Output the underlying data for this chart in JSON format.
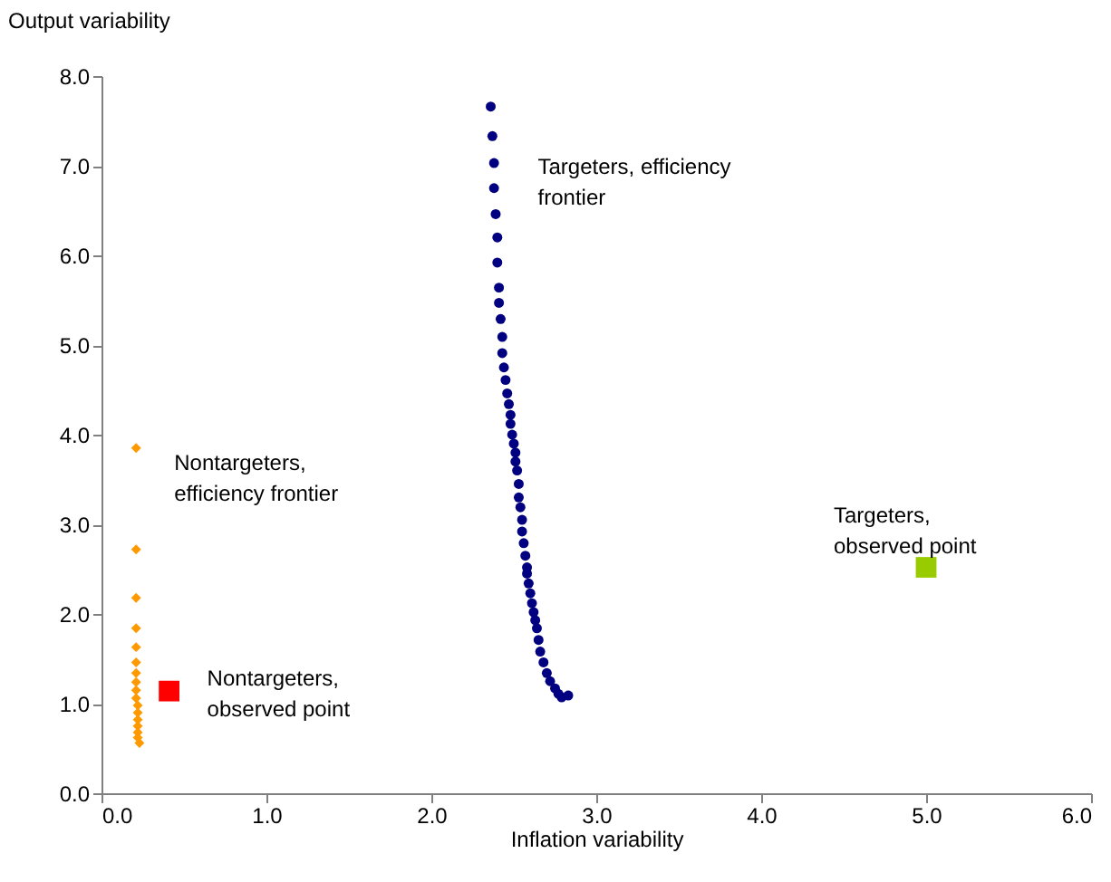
{
  "chart_data": {
    "type": "scatter",
    "xlabel": "Inflation variability",
    "ylabel": "Output variability",
    "xlim": [
      0,
      6
    ],
    "ylim": [
      0,
      8
    ],
    "xticks": [
      {
        "value": 0,
        "label": "0.0"
      },
      {
        "value": 1,
        "label": "1.0"
      },
      {
        "value": 2,
        "label": "2.0"
      },
      {
        "value": 3,
        "label": "3.0"
      },
      {
        "value": 4,
        "label": "4.0"
      },
      {
        "value": 5,
        "label": "5.0"
      },
      {
        "value": 6,
        "label": "6.0"
      }
    ],
    "yticks": [
      {
        "value": 0,
        "label": "0.0"
      },
      {
        "value": 1,
        "label": "1.0"
      },
      {
        "value": 2,
        "label": "2.0"
      },
      {
        "value": 3,
        "label": "3.0"
      },
      {
        "value": 4,
        "label": "4.0"
      },
      {
        "value": 5,
        "label": "5.0"
      },
      {
        "value": 6,
        "label": "6.0"
      },
      {
        "value": 7,
        "label": "7.0"
      },
      {
        "value": 8,
        "label": "8.0"
      }
    ],
    "grid": false,
    "series": [
      {
        "name": "Targeters, efficiency\nfrontier",
        "color": "#000080",
        "marker": "circle",
        "x": [
          2.36,
          2.37,
          2.38,
          2.38,
          2.39,
          2.4,
          2.4,
          2.41,
          2.41,
          2.42,
          2.43,
          2.43,
          2.44,
          2.45,
          2.46,
          2.47,
          2.48,
          2.48,
          2.49,
          2.5,
          2.51,
          2.51,
          2.52,
          2.53,
          2.53,
          2.54,
          2.55,
          2.55,
          2.56,
          2.57,
          2.58,
          2.58,
          2.59,
          2.6,
          2.61,
          2.62,
          2.63,
          2.64,
          2.65,
          2.66,
          2.68,
          2.7,
          2.72,
          2.75,
          2.77,
          2.79,
          2.83
        ],
        "values": [
          7.66,
          7.33,
          7.03,
          6.75,
          6.46,
          6.2,
          5.92,
          5.64,
          5.47,
          5.29,
          5.09,
          4.91,
          4.75,
          4.61,
          4.46,
          4.34,
          4.22,
          4.12,
          4.0,
          3.9,
          3.8,
          3.7,
          3.6,
          3.45,
          3.3,
          3.19,
          3.05,
          2.92,
          2.79,
          2.65,
          2.52,
          2.45,
          2.34,
          2.23,
          2.12,
          2.02,
          1.93,
          1.84,
          1.71,
          1.58,
          1.46,
          1.34,
          1.25,
          1.17,
          1.11,
          1.07,
          1.09
        ]
      },
      {
        "name": "Nontargeters,\nefficiency frontier",
        "color": "#ff9900",
        "marker": "diamond",
        "x": [
          0.21,
          0.21,
          0.21,
          0.21,
          0.21,
          0.21,
          0.21,
          0.21,
          0.21,
          0.21,
          0.22,
          0.22,
          0.22,
          0.22,
          0.22,
          0.22,
          0.23
        ],
        "values": [
          3.85,
          2.72,
          2.18,
          1.84,
          1.63,
          1.46,
          1.34,
          1.24,
          1.15,
          1.06,
          0.98,
          0.9,
          0.82,
          0.75,
          0.68,
          0.62,
          0.56
        ]
      },
      {
        "name": "Nontargeters,\nobserved point",
        "color": "#ff0000",
        "marker": "square",
        "x": [
          0.41
        ],
        "values": [
          1.14
        ]
      },
      {
        "name": "Targeters,\nobserved point",
        "color": "#99cc00",
        "marker": "square",
        "x": [
          5.0
        ],
        "values": [
          2.52
        ]
      }
    ]
  }
}
